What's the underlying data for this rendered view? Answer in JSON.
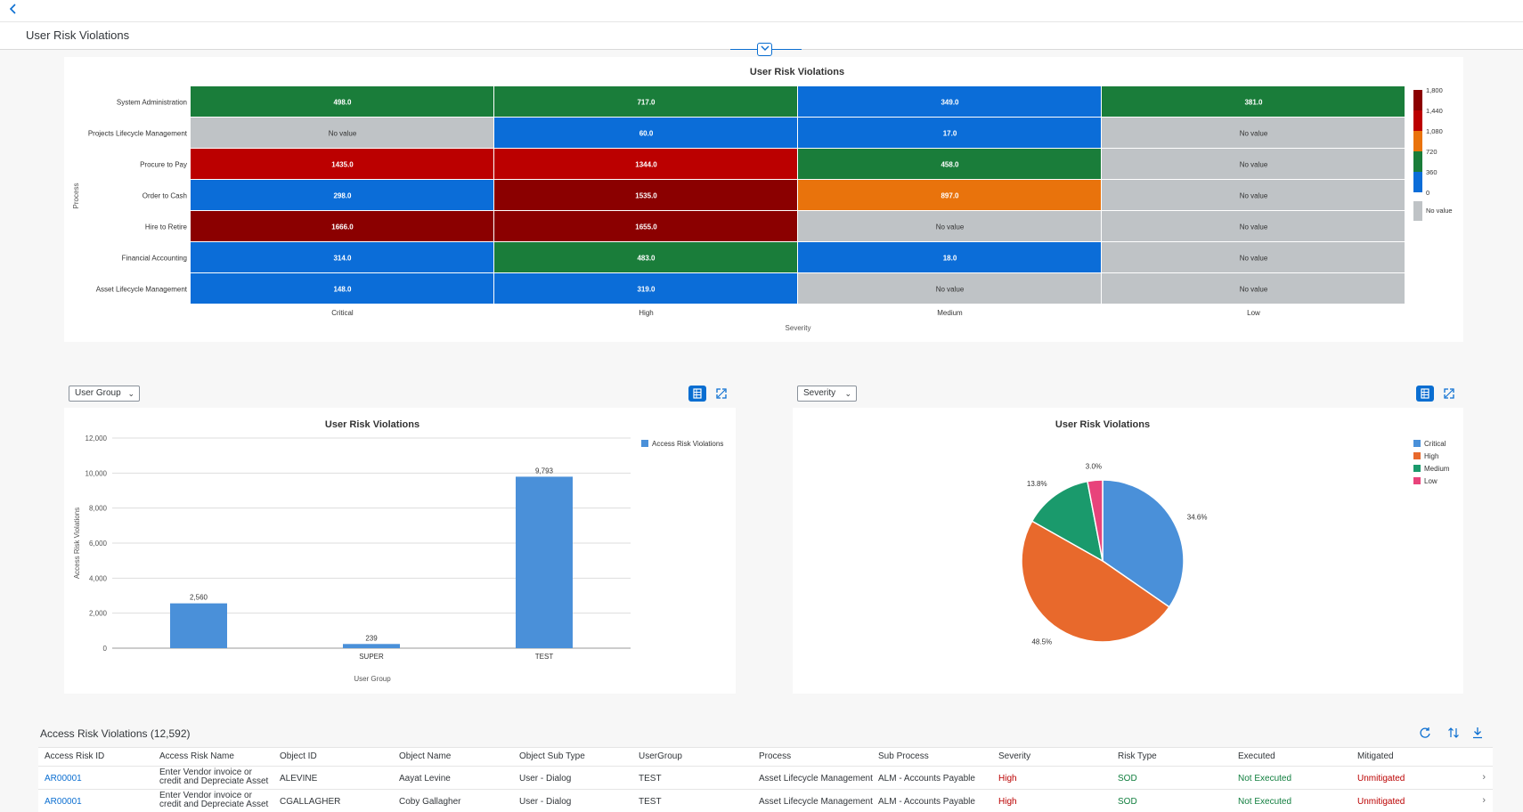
{
  "header": {
    "back_icon": "chevron-left-icon",
    "title": "User Risk Violations",
    "collapse_icon": "chevron-down-icon"
  },
  "heatmap": {
    "title": "User Risk Violations",
    "ylabel": "Process",
    "xlabel": "Severity",
    "columns": [
      "Critical",
      "High",
      "Medium",
      "Low"
    ],
    "rows": [
      "System Administration",
      "Projects Lifecycle Management",
      "Procure to Pay",
      "Order to Cash",
      "Hire to Retire",
      "Financial Accounting",
      "Asset Lifecycle Management"
    ],
    "cells": [
      [
        "498.0",
        "717.0",
        "349.0",
        "381.0"
      ],
      [
        "No value",
        "60.0",
        "17.0",
        "No value"
      ],
      [
        "1435.0",
        "1344.0",
        "458.0",
        "No value"
      ],
      [
        "298.0",
        "1535.0",
        "897.0",
        "No value"
      ],
      [
        "1666.0",
        "1655.0",
        "No value",
        "No value"
      ],
      [
        "314.0",
        "483.0",
        "18.0",
        "No value"
      ],
      [
        "148.0",
        "319.0",
        "No value",
        "No value"
      ]
    ],
    "legend_ticks": [
      "1,800",
      "1,440",
      "1,080",
      "720",
      "360",
      "0"
    ],
    "legend_colors": [
      "#8b0000",
      "#bb0000",
      "#e9730c",
      "#1a7d3a",
      "#0b6dd8"
    ],
    "no_value_label": "No value",
    "no_value_color": "#bfc3c6"
  },
  "bar_panel": {
    "dropdown": "User Group",
    "title": "User Risk Violations",
    "icons": [
      "table-view-icon",
      "fullscreen-icon"
    ]
  },
  "pie_panel": {
    "dropdown": "Severity",
    "title": "User Risk Violations",
    "icons": [
      "table-view-icon",
      "fullscreen-icon"
    ]
  },
  "chart_data": [
    {
      "type": "heatmap",
      "title": "User Risk Violations",
      "xlabel": "Severity",
      "ylabel": "Process",
      "x": [
        "Critical",
        "High",
        "Medium",
        "Low"
      ],
      "y": [
        "System Administration",
        "Projects Lifecycle Management",
        "Procure to Pay",
        "Order to Cash",
        "Hire to Retire",
        "Financial Accounting",
        "Asset Lifecycle Management"
      ],
      "values": [
        [
          498,
          717,
          349,
          381
        ],
        [
          null,
          60,
          17,
          null
        ],
        [
          1435,
          1344,
          458,
          null
        ],
        [
          298,
          1535,
          897,
          null
        ],
        [
          1666,
          1655,
          null,
          null
        ],
        [
          314,
          483,
          18,
          null
        ],
        [
          148,
          319,
          null,
          null
        ]
      ],
      "color_range": [
        0,
        1800
      ]
    },
    {
      "type": "bar",
      "title": "User Risk Violations",
      "categories": [
        "",
        "SUPER",
        "TEST"
      ],
      "series": [
        {
          "name": "Access Risk Violations",
          "values": [
            2560,
            239,
            9793
          ],
          "color": "#4a90d9"
        }
      ],
      "value_labels": [
        "2,560",
        "239",
        "9,793"
      ],
      "xlabel": "User Group",
      "ylabel": "Access Risk Violations",
      "ylim": [
        0,
        12000
      ],
      "yticks": [
        "0",
        "2,000",
        "4,000",
        "6,000",
        "8,000",
        "10,000",
        "12,000"
      ],
      "legend": "top-right",
      "grid": true
    },
    {
      "type": "pie",
      "title": "User Risk Violations",
      "categories": [
        "Critical",
        "High",
        "Medium",
        "Low"
      ],
      "values": [
        34.6,
        48.5,
        13.8,
        3.0
      ],
      "value_labels": [
        "34.6%",
        "48.5%",
        "13.8%",
        "3.0%"
      ],
      "colors": [
        "#4a90d9",
        "#e8692c",
        "#1a9a6c",
        "#e8437b"
      ],
      "legend": "top-right"
    }
  ],
  "table": {
    "title": "Access Risk Violations (12,592)",
    "tools": [
      "refresh-icon",
      "sort-icon",
      "download-icon"
    ],
    "columns": [
      "Access Risk ID",
      "Access Risk Name",
      "Object ID",
      "Object Name",
      "Object Sub Type",
      "UserGroup",
      "Process",
      "Sub Process",
      "Severity",
      "Risk Type",
      "Executed",
      "Mitigated"
    ],
    "rows": [
      [
        "AR00001",
        "Enter Vendor invoice or credit and Depreciate Asset",
        "ALEVINE",
        "Aayat Levine",
        "User - Dialog",
        "TEST",
        "Asset Lifecycle Management",
        "ALM - Accounts Payable",
        "High",
        "SOD",
        "Not Executed",
        "Unmitigated"
      ],
      [
        "AR00001",
        "Enter Vendor invoice or credit and Depreciate Asset",
        "CGALLAGHER",
        "Coby Gallagher",
        "User - Dialog",
        "TEST",
        "Asset Lifecycle Management",
        "ALM - Accounts Payable",
        "High",
        "SOD",
        "Not Executed",
        "Unmitigated"
      ]
    ]
  }
}
